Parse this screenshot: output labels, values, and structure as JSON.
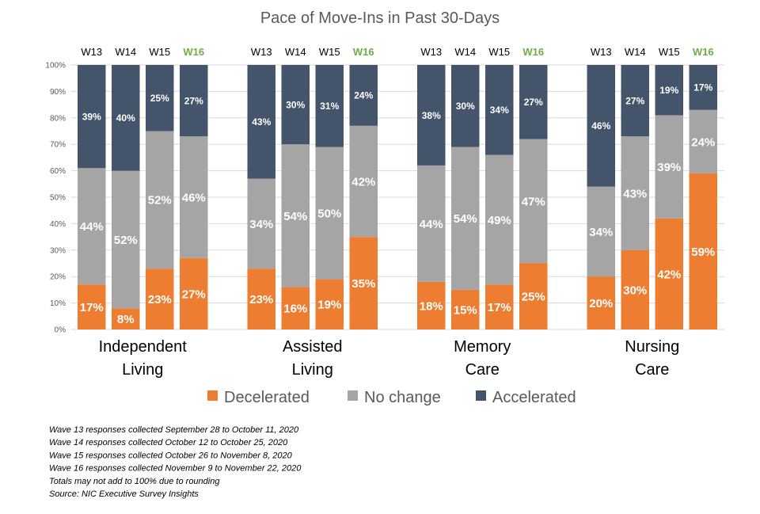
{
  "chart_data": {
    "type": "bar",
    "stacked": true,
    "title": "Pace of Move-Ins in Past 30-Days",
    "y_ticks": [
      "0%",
      "10%",
      "20%",
      "30%",
      "40%",
      "50%",
      "60%",
      "70%",
      "80%",
      "90%",
      "100%"
    ],
    "ylim": [
      0,
      100
    ],
    "grid": true,
    "legend_position": "bottom",
    "waves": [
      "W13",
      "W14",
      "W15",
      "W16"
    ],
    "highlight_wave": "W16",
    "groups": [
      {
        "label_lines": [
          "Independent",
          "Living"
        ],
        "bars": [
          {
            "wave": "W13",
            "values": [
              17,
              44,
              39
            ],
            "labels": [
              "17%",
              "44%",
              "39%"
            ]
          },
          {
            "wave": "W14",
            "values": [
              8,
              52,
              40
            ],
            "labels": [
              "8%",
              "52%",
              "40%"
            ]
          },
          {
            "wave": "W15",
            "values": [
              23,
              52,
              25
            ],
            "labels": [
              "23%",
              "52%",
              "25%"
            ]
          },
          {
            "wave": "W16",
            "values": [
              27,
              46,
              27
            ],
            "labels": [
              "27%",
              "46%",
              "27%"
            ]
          }
        ]
      },
      {
        "label_lines": [
          "Assisted",
          "Living"
        ],
        "bars": [
          {
            "wave": "W13",
            "values": [
              23,
              34,
              43
            ],
            "labels": [
              "23%",
              "34%",
              "43%"
            ]
          },
          {
            "wave": "W14",
            "values": [
              16,
              54,
              30
            ],
            "labels": [
              "16%",
              "54%",
              "30%"
            ]
          },
          {
            "wave": "W15",
            "values": [
              19,
              50,
              31
            ],
            "labels": [
              "19%",
              "50%",
              "31%"
            ]
          },
          {
            "wave": "W16",
            "values": [
              35,
              42,
              24
            ],
            "labels": [
              "35%",
              "42%",
              "24%"
            ]
          }
        ]
      },
      {
        "label_lines": [
          "Memory",
          "Care"
        ],
        "bars": [
          {
            "wave": "W13",
            "values": [
              18,
              44,
              38
            ],
            "labels": [
              "18%",
              "44%",
              "38%"
            ]
          },
          {
            "wave": "W14",
            "values": [
              15,
              54,
              30
            ],
            "labels": [
              "15%",
              "54%",
              "30%"
            ]
          },
          {
            "wave": "W15",
            "values": [
              17,
              49,
              34
            ],
            "labels": [
              "17%",
              "49%",
              "34%"
            ]
          },
          {
            "wave": "W16",
            "values": [
              25,
              47,
              27
            ],
            "labels": [
              "25%",
              "47%",
              "27%"
            ]
          }
        ]
      },
      {
        "label_lines": [
          "Nursing",
          "Care"
        ],
        "bars": [
          {
            "wave": "W13",
            "values": [
              20,
              34,
              46
            ],
            "labels": [
              "20%",
              "34%",
              "46%"
            ]
          },
          {
            "wave": "W14",
            "values": [
              30,
              43,
              27
            ],
            "labels": [
              "30%",
              "43%",
              "27%"
            ]
          },
          {
            "wave": "W15",
            "values": [
              42,
              39,
              19
            ],
            "labels": [
              "42%",
              "39%",
              "19%"
            ]
          },
          {
            "wave": "W16",
            "values": [
              59,
              24,
              17
            ],
            "labels": [
              "59%",
              "24%",
              "17%"
            ]
          }
        ]
      }
    ],
    "series": [
      {
        "name": "Decelerated",
        "color": "#ed7d31"
      },
      {
        "name": "No change",
        "color": "#a5a5a5"
      },
      {
        "name": "Accelerated",
        "color": "#44546a"
      }
    ],
    "footnotes": [
      "Wave 13 responses collected September 28 to October 11, 2020",
      "Wave 14 responses collected October 12 to October 25, 2020",
      "Wave 15 responses collected October 26 to November 8, 2020",
      "Wave 16 responses collected November 9 to November 22, 2020",
      "Totals may not add to 100% due to rounding",
      "Source: NIC Executive Survey Insights"
    ]
  }
}
